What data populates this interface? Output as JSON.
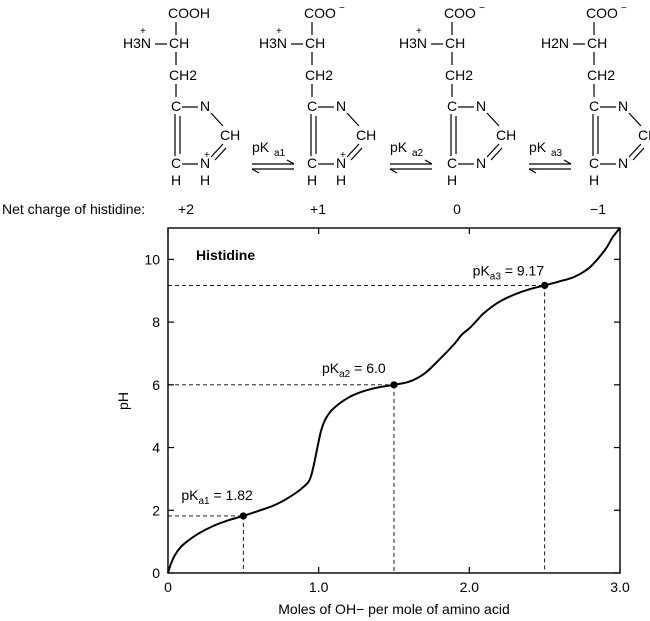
{
  "species": [
    {
      "carboxyl_label": "COOH",
      "carboxyl_charge": "",
      "amino_label": "H3N",
      "amino_charge": "+",
      "ring_nh_label": "N",
      "ring_nh_h": "H",
      "ring_nh_charge": "+"
    },
    {
      "carboxyl_label": "COO",
      "carboxyl_charge": "−",
      "amino_label": "H3N",
      "amino_charge": "+",
      "ring_nh_label": "N",
      "ring_nh_h": "H",
      "ring_nh_charge": "+"
    },
    {
      "carboxyl_label": "COO",
      "carboxyl_charge": "−",
      "amino_label": "H3N",
      "amino_charge": "+",
      "ring_nh_label": "N",
      "ring_nh_h": "",
      "ring_nh_charge": ""
    },
    {
      "carboxyl_label": "COO",
      "carboxyl_charge": "−",
      "amino_label": "H2N",
      "amino_charge": "",
      "ring_nh_label": "N",
      "ring_nh_h": "",
      "ring_nh_charge": ""
    }
  ],
  "common_labels": {
    "ch": "CH",
    "ch2": "CH2",
    "c": "C",
    "n": "N",
    "h": "H"
  },
  "equilibria": [
    {
      "p": "pK",
      "sub": "a1"
    },
    {
      "p": "pK",
      "sub": "a2"
    },
    {
      "p": "pK",
      "sub": "a3"
    }
  ],
  "net_charge": {
    "label": "Net charge of histidine:",
    "values": [
      "+2",
      "+1",
      "0",
      "−1"
    ]
  },
  "chart_data": {
    "type": "line",
    "title": "Histidine",
    "xlabel": "Moles of OH− per mole of amino acid",
    "ylabel": "pH",
    "xlim": [
      0,
      3.0
    ],
    "ylim": [
      0,
      11
    ],
    "xticks": [
      0,
      1.0,
      2.0,
      3.0
    ],
    "xtick_labels": [
      "0",
      "1.0",
      "2.0",
      "3.0"
    ],
    "yticks": [
      0,
      2,
      4,
      6,
      8,
      10
    ],
    "ytick_labels": [
      "0",
      "2",
      "4",
      "6",
      "8",
      "10"
    ],
    "grid": false,
    "series": [
      {
        "x": [
          0.0,
          0.02,
          0.05,
          0.1,
          0.2,
          0.3,
          0.4,
          0.5,
          0.6,
          0.7,
          0.8,
          0.9,
          0.95,
          1.0,
          1.02,
          1.05,
          1.1,
          1.2,
          1.3,
          1.4,
          1.5,
          1.6,
          1.7,
          1.8,
          1.9,
          1.95,
          2.0,
          2.05,
          2.1,
          2.2,
          2.3,
          2.4,
          2.5,
          2.6,
          2.7,
          2.8,
          2.9,
          2.95,
          3.0
        ],
        "y": [
          0.0,
          0.3,
          0.6,
          0.9,
          1.25,
          1.5,
          1.68,
          1.82,
          1.98,
          2.15,
          2.4,
          2.75,
          3.1,
          4.2,
          4.6,
          4.95,
          5.25,
          5.6,
          5.8,
          5.92,
          6.0,
          6.1,
          6.35,
          6.8,
          7.3,
          7.6,
          7.8,
          8.05,
          8.3,
          8.65,
          8.88,
          9.05,
          9.17,
          9.3,
          9.45,
          9.75,
          10.3,
          10.7,
          11.0
        ]
      }
    ],
    "points": [
      {
        "x": 0.5,
        "y": 1.82,
        "label_p": "pK",
        "label_sub": "a1",
        "label_value": " = 1.82"
      },
      {
        "x": 1.5,
        "y": 6.0,
        "label_p": "pK",
        "label_sub": "a2",
        "label_value": " = 6.0"
      },
      {
        "x": 2.5,
        "y": 9.17,
        "label_p": "pK",
        "label_sub": "a3",
        "label_value": " = 9.17"
      }
    ]
  }
}
